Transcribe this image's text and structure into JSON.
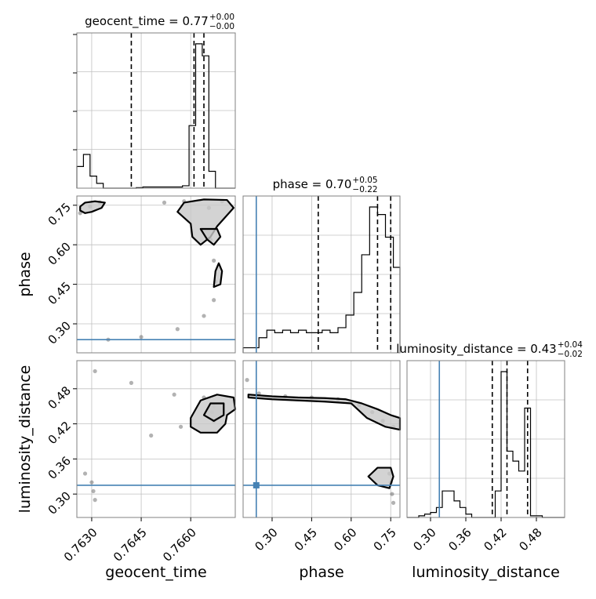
{
  "chart_data": {
    "type": "corner",
    "parameters": [
      "geocent_time",
      "phase",
      "luminosity_distance"
    ],
    "titles": [
      {
        "param": "geocent_time",
        "prefix": "geocent_time = ",
        "median": "0.77",
        "plus": "+0.00",
        "minus": "−0.00"
      },
      {
        "param": "phase",
        "prefix": "phase = ",
        "median": "0.70",
        "plus": "+0.05",
        "minus": "−0.22"
      },
      {
        "param": "luminosity_distance",
        "prefix": "luminosity_distance = ",
        "median": "0.43",
        "plus": "+0.04",
        "minus": "−0.02"
      }
    ],
    "axis_labels": {
      "x": [
        "geocent_time",
        "phase",
        "luminosity_distance"
      ],
      "y": [
        "phase",
        "luminosity_distance"
      ]
    },
    "ranges": {
      "geocent_time": [
        0.76255,
        0.76735
      ],
      "phase": [
        0.19,
        0.785
      ],
      "luminosity_distance": [
        0.26,
        0.528
      ]
    },
    "ticks": {
      "geocent_time": {
        "values": [
          0.763,
          0.7645,
          0.766
        ],
        "labels": [
          "0.7630",
          "0.7645",
          "0.7660"
        ]
      },
      "phase": {
        "values": [
          0.3,
          0.45,
          0.6,
          0.75
        ],
        "labels": [
          "0.30",
          "0.45",
          "0.60",
          "0.75"
        ]
      },
      "luminosity_distance": {
        "values": [
          0.3,
          0.36,
          0.42,
          0.48
        ],
        "labels": [
          "0.30",
          "0.36",
          "0.42",
          "0.48"
        ]
      }
    },
    "truths": {
      "phase": 0.24,
      "luminosity_distance": 0.315
    },
    "quantiles": {
      "geocent_time": [
        0.7642,
        0.7661,
        0.7664
      ],
      "phase": [
        0.475,
        0.7,
        0.75
      ],
      "luminosity_distance": [
        0.405,
        0.43,
        0.465
      ]
    },
    "histograms": {
      "geocent_time": {
        "edges": [
          0.76255,
          0.76275,
          0.76295,
          0.76315,
          0.76335,
          0.76355,
          0.76435,
          0.76455,
          0.76575,
          0.76595,
          0.76615,
          0.76635,
          0.76655,
          0.76675,
          0.76695,
          0.76715,
          0.76735
        ],
        "counts": [
          0.9,
          1.4,
          0.5,
          0.2,
          0.0,
          0.0,
          0.02,
          0.05,
          0.1,
          2.6,
          6.0,
          5.5,
          0.7,
          0.0,
          0.0,
          0.0
        ]
      },
      "phase": {
        "edges": [
          0.19,
          0.22,
          0.25,
          0.28,
          0.31,
          0.34,
          0.37,
          0.4,
          0.43,
          0.46,
          0.49,
          0.52,
          0.55,
          0.58,
          0.61,
          0.64,
          0.67,
          0.7,
          0.73,
          0.76,
          0.785
        ],
        "counts": [
          0.2,
          0.2,
          0.6,
          0.9,
          0.8,
          0.9,
          0.8,
          0.9,
          0.8,
          0.8,
          0.9,
          0.8,
          1.0,
          1.5,
          2.4,
          3.9,
          5.8,
          5.5,
          4.6,
          3.4
        ]
      },
      "luminosity_distance": {
        "edges": [
          0.26,
          0.28,
          0.29,
          0.3,
          0.31,
          0.32,
          0.33,
          0.34,
          0.35,
          0.36,
          0.37,
          0.38,
          0.39,
          0.4,
          0.41,
          0.42,
          0.43,
          0.44,
          0.45,
          0.46,
          0.47,
          0.48,
          0.49,
          0.528
        ],
        "counts": [
          0.0,
          0.05,
          0.1,
          0.15,
          0.3,
          0.8,
          0.8,
          0.5,
          0.3,
          0.1,
          0.0,
          0.0,
          0.0,
          0.0,
          0.8,
          4.4,
          2.0,
          1.7,
          1.4,
          3.3,
          0.05,
          0.05,
          0.0
        ]
      }
    },
    "scatter": [
      {
        "x": "geocent_time",
        "y": "phase",
        "points": [
          [
            0.76265,
            0.72
          ],
          [
            0.76295,
            0.745
          ],
          [
            0.76325,
            0.76
          ],
          [
            0.7652,
            0.76
          ],
          [
            0.7658,
            0.765
          ],
          [
            0.76655,
            0.74
          ],
          [
            0.7666,
            0.62
          ],
          [
            0.7667,
            0.54
          ],
          [
            0.76675,
            0.46
          ],
          [
            0.7667,
            0.39
          ],
          [
            0.7664,
            0.33
          ],
          [
            0.7656,
            0.28
          ],
          [
            0.7645,
            0.25
          ],
          [
            0.7635,
            0.24
          ],
          [
            0.76695,
            0.765
          ]
        ]
      },
      {
        "x": "geocent_time",
        "y": "luminosity_distance",
        "points": [
          [
            0.7631,
            0.51
          ],
          [
            0.7642,
            0.49
          ],
          [
            0.7655,
            0.47
          ],
          [
            0.7664,
            0.465
          ],
          [
            0.7667,
            0.45
          ],
          [
            0.76665,
            0.44
          ],
          [
            0.7667,
            0.425
          ],
          [
            0.7657,
            0.415
          ],
          [
            0.7648,
            0.4
          ],
          [
            0.7628,
            0.335
          ],
          [
            0.763,
            0.32
          ],
          [
            0.76305,
            0.305
          ],
          [
            0.7631,
            0.29
          ]
        ]
      },
      {
        "x": "phase",
        "y": "luminosity_distance",
        "points": [
          [
            0.205,
            0.495
          ],
          [
            0.25,
            0.472
          ],
          [
            0.35,
            0.467
          ],
          [
            0.45,
            0.465
          ],
          [
            0.55,
            0.462
          ],
          [
            0.63,
            0.452
          ],
          [
            0.68,
            0.44
          ],
          [
            0.72,
            0.425
          ],
          [
            0.76,
            0.415
          ],
          [
            0.745,
            0.335
          ],
          [
            0.75,
            0.32
          ],
          [
            0.755,
            0.3
          ],
          [
            0.76,
            0.285
          ]
        ]
      }
    ],
    "contours": [
      {
        "x": "geocent_time",
        "y": "phase",
        "levels": [
          [
            [
              0.76265,
              0.745
            ],
            [
              0.7628,
              0.76
            ],
            [
              0.7631,
              0.765
            ],
            [
              0.7634,
              0.76
            ],
            [
              0.7633,
              0.74
            ],
            [
              0.763,
              0.725
            ],
            [
              0.7628,
              0.72
            ],
            [
              0.76265,
              0.73
            ],
            [
              0.76265,
              0.745
            ]
          ],
          [
            [
              0.7656,
              0.725
            ],
            [
              0.7658,
              0.76
            ],
            [
              0.7664,
              0.772
            ],
            [
              0.7671,
              0.77
            ],
            [
              0.7673,
              0.74
            ],
            [
              0.7668,
              0.67
            ],
            [
              0.7666,
              0.63
            ],
            [
              0.7663,
              0.6
            ],
            [
              0.76605,
              0.63
            ],
            [
              0.766,
              0.68
            ],
            [
              0.7656,
              0.725
            ]
          ],
          [
            [
              0.7663,
              0.66
            ],
            [
              0.7665,
              0.62
            ],
            [
              0.7667,
              0.6
            ],
            [
              0.7669,
              0.63
            ],
            [
              0.7668,
              0.66
            ],
            [
              0.7663,
              0.66
            ]
          ],
          [
            [
              0.7667,
              0.44
            ],
            [
              0.76675,
              0.5
            ],
            [
              0.76685,
              0.53
            ],
            [
              0.76695,
              0.5
            ],
            [
              0.7669,
              0.45
            ],
            [
              0.7667,
              0.44
            ]
          ]
        ]
      },
      {
        "x": "geocent_time",
        "y": "luminosity_distance",
        "levels": [
          [
            [
              0.766,
              0.43
            ],
            [
              0.7663,
              0.46
            ],
            [
              0.7668,
              0.47
            ],
            [
              0.7673,
              0.465
            ],
            [
              0.76735,
              0.445
            ],
            [
              0.7671,
              0.435
            ],
            [
              0.76705,
              0.42
            ],
            [
              0.7668,
              0.405
            ],
            [
              0.7663,
              0.405
            ],
            [
              0.766,
              0.415
            ],
            [
              0.766,
              0.43
            ]
          ],
          [
            [
              0.7664,
              0.435
            ],
            [
              0.7666,
              0.455
            ],
            [
              0.767,
              0.455
            ],
            [
              0.767,
              0.435
            ],
            [
              0.7667,
              0.425
            ],
            [
              0.7664,
              0.435
            ]
          ]
        ]
      },
      {
        "x": "phase",
        "y": "luminosity_distance",
        "levels": [
          [
            [
              0.21,
              0.47
            ],
            [
              0.3,
              0.467
            ],
            [
              0.4,
              0.465
            ],
            [
              0.5,
              0.464
            ],
            [
              0.58,
              0.462
            ],
            [
              0.64,
              0.455
            ],
            [
              0.7,
              0.445
            ],
            [
              0.75,
              0.435
            ],
            [
              0.785,
              0.43
            ],
            [
              0.785,
              0.41
            ],
            [
              0.73,
              0.415
            ],
            [
              0.66,
              0.43
            ],
            [
              0.6,
              0.455
            ],
            [
              0.5,
              0.458
            ],
            [
              0.4,
              0.46
            ],
            [
              0.3,
              0.462
            ],
            [
              0.21,
              0.465
            ],
            [
              0.21,
              0.47
            ]
          ],
          [
            [
              0.665,
              0.33
            ],
            [
              0.7,
              0.345
            ],
            [
              0.75,
              0.345
            ],
            [
              0.76,
              0.33
            ],
            [
              0.745,
              0.31
            ],
            [
              0.7,
              0.315
            ],
            [
              0.665,
              0.33
            ]
          ]
        ]
      }
    ],
    "grid": true,
    "colors": {
      "truth": "#4682b4",
      "hist": "#000000",
      "contour": "#000000",
      "fill": "#c8c8c8",
      "grid": "#c0c0c0"
    }
  }
}
